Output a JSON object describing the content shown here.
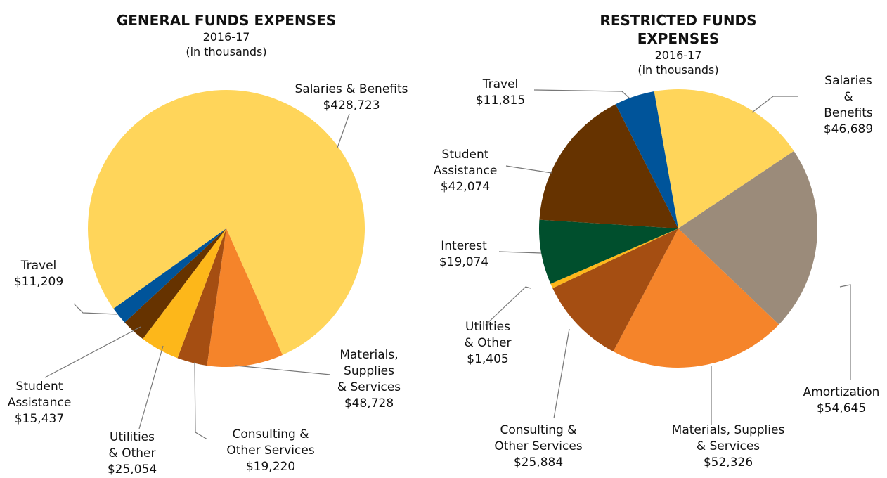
{
  "chart_data": [
    {
      "type": "pie",
      "title": "GENERAL FUNDS EXPENSES",
      "subtitle": "2016-17\n(in thousands)",
      "categories": [
        "Salaries & Benefits",
        "Materials,\nSupplies\n& Services",
        "Consulting &\nOther Services",
        "Utilities\n& Other",
        "Student\nAssistance",
        "Travel"
      ],
      "values": [
        428723,
        48728,
        19220,
        25054,
        15437,
        11209
      ],
      "value_labels": [
        "$428,723",
        "$48,728",
        "$19,220",
        "$25,054",
        "$15,437",
        "$11,209"
      ],
      "colors": [
        "#ffd55a",
        "#f5842a",
        "#a54e12",
        "#fdb71a",
        "#663300",
        "#00549a"
      ]
    },
    {
      "type": "pie",
      "title": "RESTRICTED FUNDS EXPENSES",
      "subtitle": "2016-17\n(in thousands)",
      "categories": [
        "Salaries &\nBenefits",
        "Amortization",
        "Materials, Supplies\n& Services",
        "Consulting &\nOther Services",
        "Utilities\n& Other",
        "Interest",
        "Student\nAssistance",
        "Travel"
      ],
      "values": [
        46689,
        54645,
        52326,
        25884,
        1405,
        19074,
        42074,
        11815
      ],
      "value_labels": [
        "$46,689",
        "$54,645",
        "$52,326",
        "$25,884",
        "$1,405",
        "$19,074",
        "$42,074",
        "$11,815"
      ],
      "colors": [
        "#ffd55a",
        "#9b8b7a",
        "#f5842a",
        "#a54e12",
        "#fdb71a",
        "#004f2d",
        "#663300",
        "#00549a"
      ]
    }
  ]
}
